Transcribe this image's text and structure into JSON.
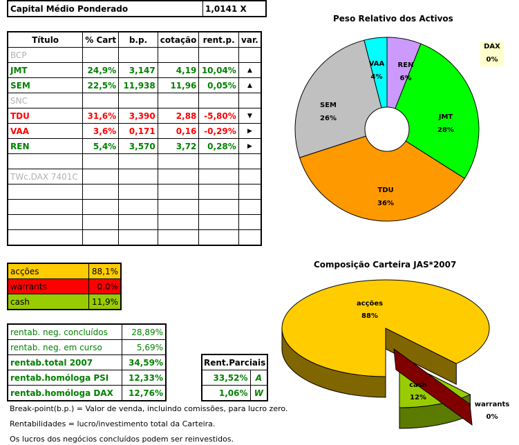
{
  "capital": {
    "label": "Capital Médio Ponderado",
    "value": "1,0141 X"
  },
  "portfolio": {
    "headers": [
      "Título",
      "% Cart",
      "b.p.",
      "cotação",
      "rent.p.",
      "var."
    ],
    "rows": [
      {
        "titulo": "BCP",
        "cart": "",
        "bp": "",
        "cot": "",
        "rent": "",
        "var": "",
        "style": "gr"
      },
      {
        "titulo": "JMT",
        "cart": "24,9%",
        "bp": "3,147",
        "cot": "4,19",
        "rent": "10,04%",
        "var": "up",
        "style": "g"
      },
      {
        "titulo": "SEM",
        "cart": "22,5%",
        "bp": "11,938",
        "cot": "11,96",
        "rent": "0,05%",
        "var": "up",
        "style": "g"
      },
      {
        "titulo": "SNC",
        "cart": "",
        "bp": "",
        "cot": "",
        "rent": "",
        "var": "",
        "style": "gr"
      },
      {
        "titulo": "TDU",
        "cart": "31,6%",
        "bp": "3,390",
        "cot": "2,88",
        "rent": "-5,80%",
        "var": "down",
        "style": "r"
      },
      {
        "titulo": "VAA",
        "cart": "3,6%",
        "bp": "0,171",
        "cot": "0,16",
        "rent": "-0,29%",
        "var": "right",
        "style": "r"
      },
      {
        "titulo": "REN",
        "cart": "5,4%",
        "bp": "3,570",
        "cot": "3,72",
        "rent": "0,28%",
        "var": "right",
        "style": "g"
      },
      {
        "titulo": "",
        "cart": "",
        "bp": "",
        "cot": "",
        "rent": "",
        "var": "",
        "style": ""
      },
      {
        "titulo": "TWc.DAX 7401C",
        "cart": "",
        "bp": "",
        "cot": "",
        "rent": "",
        "var": "",
        "style": "gr"
      },
      {
        "titulo": "",
        "cart": "",
        "bp": "",
        "cot": "",
        "rent": "",
        "var": "",
        "style": ""
      },
      {
        "titulo": "",
        "cart": "",
        "bp": "",
        "cot": "",
        "rent": "",
        "var": "",
        "style": ""
      },
      {
        "titulo": "",
        "cart": "",
        "bp": "",
        "cot": "",
        "rent": "",
        "var": "",
        "style": ""
      },
      {
        "titulo": "",
        "cart": "",
        "bp": "",
        "cot": "",
        "rent": "",
        "var": "",
        "style": ""
      }
    ]
  },
  "allocation": [
    {
      "label": "acções",
      "value": "88,1%",
      "color": "#ffcc00"
    },
    {
      "label": "warrants",
      "value": "0,0%",
      "color": "#ff0000"
    },
    {
      "label": "cash",
      "value": "11,9%",
      "color": "#99cc00"
    }
  ],
  "returns": [
    {
      "label": "rentab. neg. concluídos",
      "value": "28,89%",
      "bold": false
    },
    {
      "label": "rentab. neg. em curso",
      "value": "5,69%",
      "bold": false
    },
    {
      "label": "rentab.total 2007",
      "value": "34,59%",
      "bold": true
    },
    {
      "label": "rentab.homóloga PSI",
      "value": "12,33%",
      "bold": true
    },
    {
      "label": "rentab.homóloga DAX",
      "value": "12,76%",
      "bold": true
    }
  ],
  "partial": {
    "header": "Rent.Parciais",
    "rows": [
      {
        "value": "33,52%",
        "tag": "A"
      },
      {
        "value": "1,06%",
        "tag": "W"
      }
    ]
  },
  "notes": [
    "Break-point(b.p.) = Valor de venda, incluindo comissões, para lucro zero.",
    "Rentabilidades = lucro/investimento total da Carteira.",
    "Os lucros dos negócios concluídos podem ser reinvestidos."
  ],
  "chart_data": [
    {
      "type": "pie",
      "title": "Peso Relativo dos Activos",
      "categories": [
        "REN",
        "JMT",
        "TDU",
        "SEM",
        "VAA",
        "DAX"
      ],
      "values": [
        6,
        28,
        36,
        26,
        4,
        0
      ],
      "labels": [
        "6%",
        "28%",
        "36%",
        "26%",
        "4%",
        "0%"
      ],
      "colors": [
        "#cc99ff",
        "#00ff00",
        "#ff9900",
        "#c0c0c0",
        "#00ffff",
        "#ffffcc"
      ],
      "donut": true
    },
    {
      "type": "pie",
      "title": "Composição Carteira JAS*2007",
      "categories": [
        "acções",
        "cash",
        "warrants"
      ],
      "values": [
        88,
        12,
        0
      ],
      "labels": [
        "88%",
        "12%",
        "0%"
      ],
      "colors": [
        "#ffcc00",
        "#99cc00",
        "#ff0000"
      ],
      "style": "3d-exploded"
    }
  ]
}
